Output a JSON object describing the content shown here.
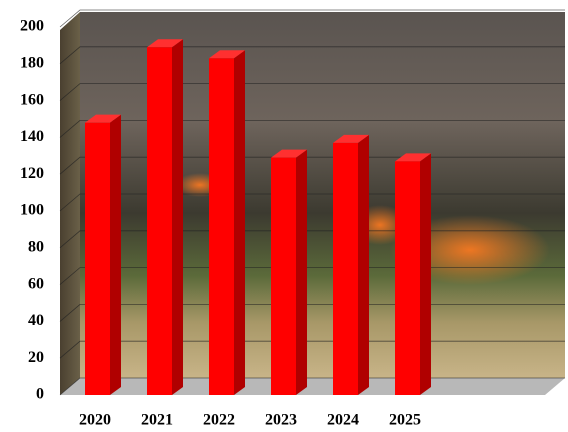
{
  "chart_data": {
    "type": "bar3d",
    "categories": [
      "2020",
      "2021",
      "2022",
      "2023",
      "2024",
      "2025"
    ],
    "values": [
      148,
      189,
      183,
      129,
      137,
      127
    ],
    "color": "#ff0000",
    "ylim": [
      0,
      200
    ],
    "yticks": [
      0,
      20,
      40,
      60,
      80,
      100,
      120,
      140,
      160,
      180,
      200
    ],
    "grid": true
  }
}
